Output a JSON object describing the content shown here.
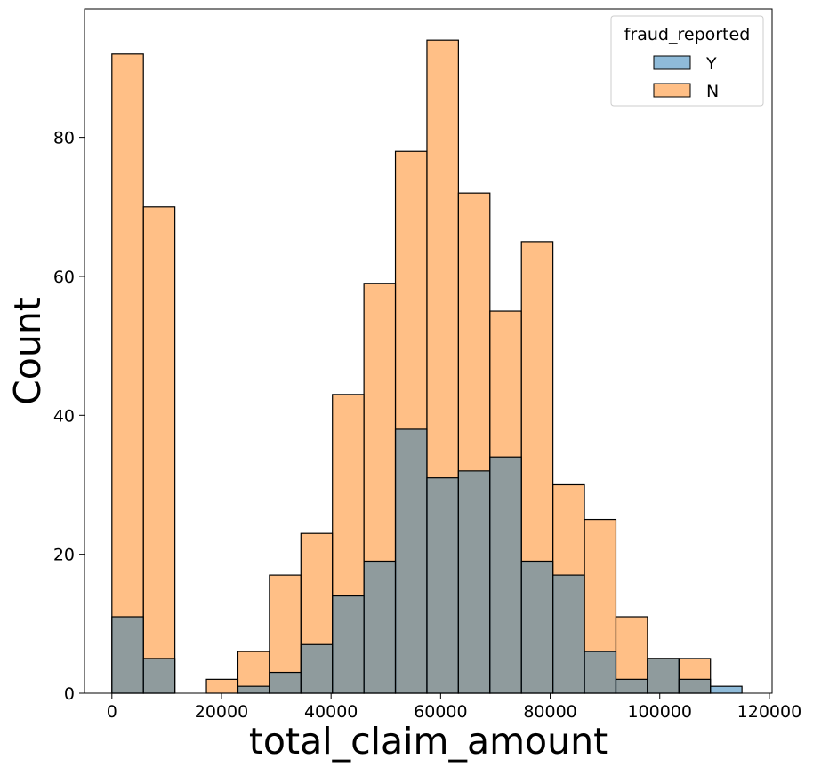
{
  "chart_data": {
    "type": "bar",
    "subtype": "overlaid-histogram",
    "title": "",
    "xlabel": "total_claim_amount",
    "ylabel": "Count",
    "xlim": [
      -5000,
      120500
    ],
    "ylim": [
      0,
      98.5
    ],
    "x_ticks": [
      0,
      20000,
      40000,
      60000,
      80000,
      100000,
      120000
    ],
    "x_tick_labels": [
      "0",
      "20000",
      "40000",
      "60000",
      "80000",
      "100000",
      "120000"
    ],
    "y_ticks": [
      0,
      20,
      40,
      60,
      80
    ],
    "y_tick_labels": [
      "0",
      "20",
      "40",
      "60",
      "80"
    ],
    "bin_edges": [
      0,
      5750,
      11500,
      17250,
      23000,
      28750,
      34500,
      40250,
      46000,
      51750,
      57500,
      63250,
      69000,
      74750,
      80500,
      86250,
      92000,
      97750,
      103500,
      109250,
      115000
    ],
    "grid": false,
    "legend": {
      "title": "fraud_reported",
      "position": "top-right"
    },
    "series": [
      {
        "name": "Y",
        "color": "#1f77b4",
        "alpha": 0.5,
        "values": [
          11,
          5,
          0,
          0,
          1,
          3,
          7,
          14,
          19,
          38,
          31,
          32,
          34,
          19,
          17,
          6,
          2,
          5,
          2,
          1
        ]
      },
      {
        "name": "N",
        "color": "#ff7f0e",
        "alpha": 0.5,
        "values": [
          92,
          70,
          0,
          2,
          6,
          17,
          23,
          43,
          59,
          78,
          94,
          72,
          55,
          65,
          30,
          25,
          11,
          5,
          5,
          0
        ]
      }
    ]
  }
}
